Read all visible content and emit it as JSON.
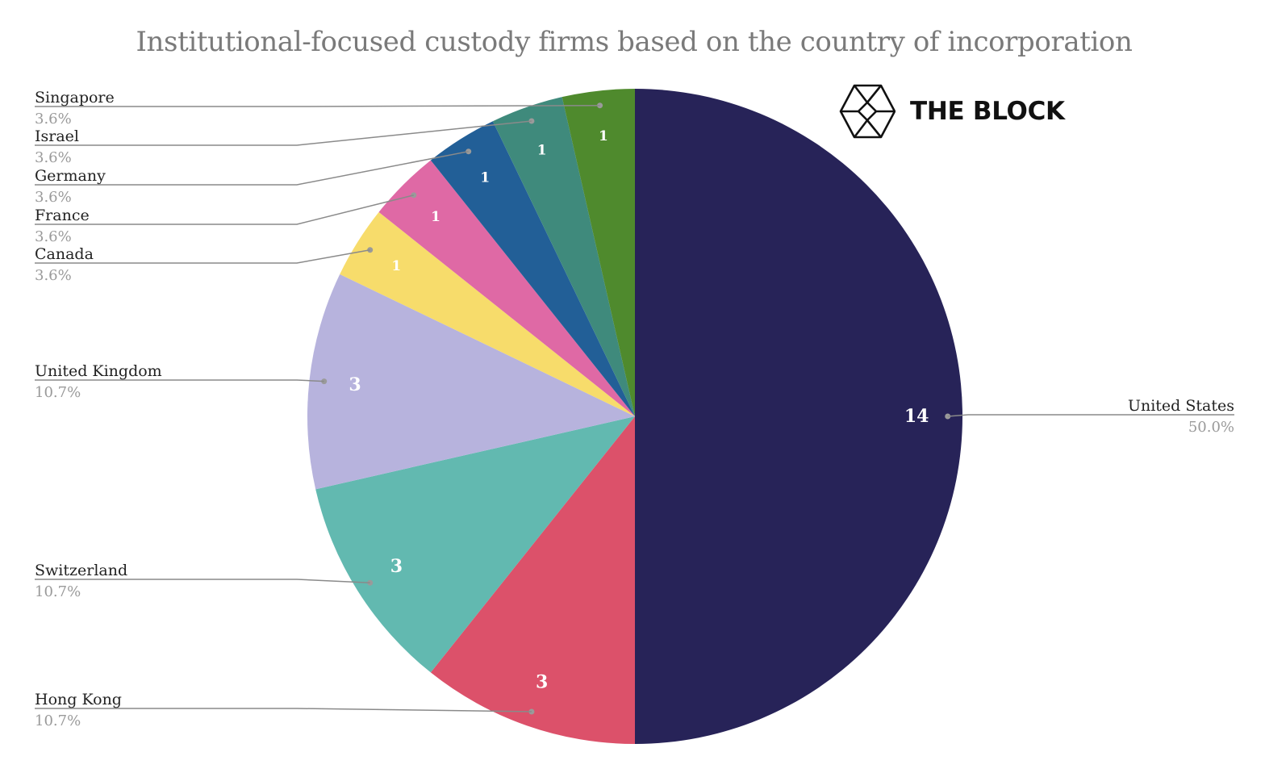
{
  "chart_data": {
    "type": "pie",
    "title": "Institutional-focused custody firms based on the country of incorporation",
    "start_angle_deg": 0,
    "direction": "clockwise",
    "slices": [
      {
        "label": "United States",
        "value": 14,
        "percent": "50.0%",
        "color": "#272358",
        "label_side": "right"
      },
      {
        "label": "Hong Kong",
        "value": 3,
        "percent": "10.7%",
        "color": "#dc516a",
        "label_side": "left"
      },
      {
        "label": "Switzerland",
        "value": 3,
        "percent": "10.7%",
        "color": "#62b9b0",
        "label_side": "left"
      },
      {
        "label": "United Kingdom",
        "value": 3,
        "percent": "10.7%",
        "color": "#b7b3dd",
        "label_side": "left"
      },
      {
        "label": "Canada",
        "value": 1,
        "percent": "3.6%",
        "color": "#f7dc6b",
        "label_side": "left"
      },
      {
        "label": "France",
        "value": 1,
        "percent": "3.6%",
        "color": "#df69a5",
        "label_side": "left"
      },
      {
        "label": "Germany",
        "value": 1,
        "percent": "3.6%",
        "color": "#225f97",
        "label_side": "left"
      },
      {
        "label": "Israel",
        "value": 1,
        "percent": "3.6%",
        "color": "#3f8a7c",
        "label_side": "left"
      },
      {
        "label": "Singapore",
        "value": 1,
        "percent": "3.6%",
        "color": "#4f8a2d",
        "label_side": "left"
      }
    ]
  },
  "brand": {
    "name": "THE BLOCK",
    "icon": "cube-logo-icon"
  }
}
